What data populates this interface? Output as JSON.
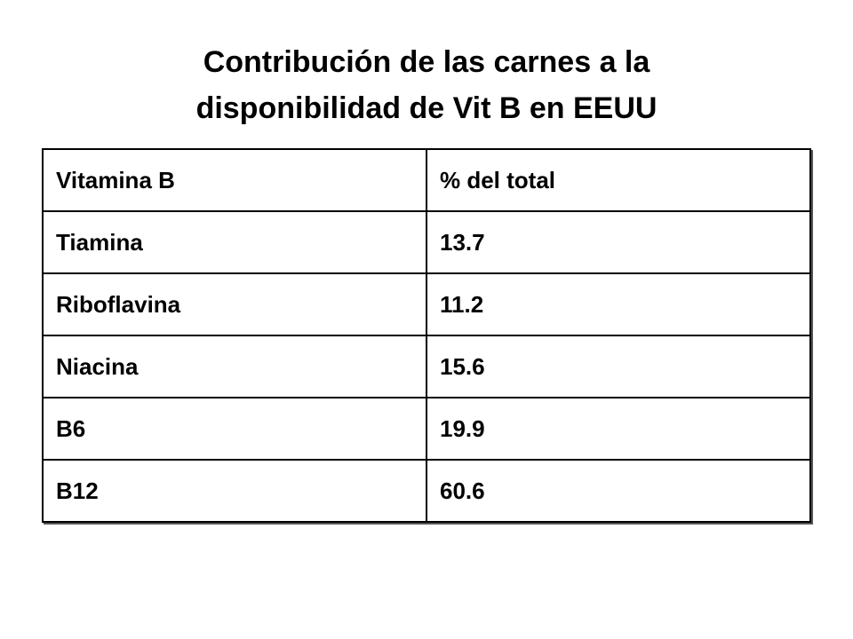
{
  "header": {
    "title_lines": [
      "Contribución de las carnes a la",
      "disponibilidad de Vit B en EEUU"
    ]
  },
  "table": {
    "columns": [
      "Vitamina B",
      "% del total"
    ],
    "rows": [
      [
        "Tiamina",
        13.7
      ],
      [
        "Riboflavina",
        11.2
      ],
      [
        "Niacina",
        15.6
      ],
      [
        "B6",
        19.9
      ],
      [
        "B12",
        60.6
      ]
    ]
  }
}
